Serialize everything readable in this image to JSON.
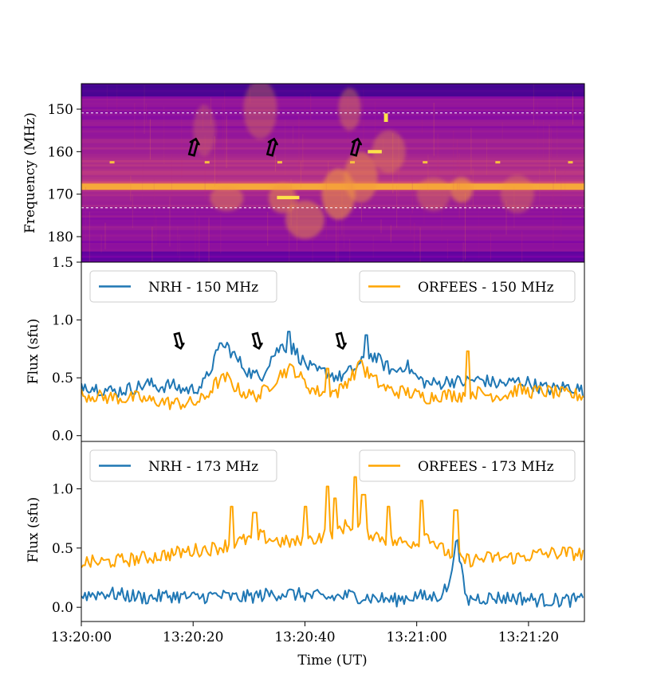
{
  "chart_data": [
    {
      "type": "heatmap",
      "title": "",
      "ylabel": "Frequency (MHz)",
      "ylim": [
        186,
        144
      ],
      "yticks": [
        150,
        160,
        170,
        180
      ],
      "ytick_labels": [
        "150",
        "160",
        "170",
        "180"
      ],
      "xlim": [
        0,
        90
      ],
      "colormap": "plasma",
      "reference_lines_mhz": [
        150.9,
        173.2
      ],
      "arrows_at_seconds": [
        19.5,
        33.5,
        48.5
      ],
      "arrow_glyph": "⇧",
      "blobs": [
        {
          "t": 22,
          "f": 155,
          "w": 2.0,
          "h": 12,
          "a": 0.25
        },
        {
          "t": 26,
          "f": 171,
          "w": 3.0,
          "h": 6,
          "a": 0.4
        },
        {
          "t": 32,
          "f": 150,
          "w": 3.0,
          "h": 14,
          "a": 0.3
        },
        {
          "t": 36,
          "f": 171,
          "w": 2.5,
          "h": 7,
          "a": 0.45
        },
        {
          "t": 40,
          "f": 176,
          "w": 3.5,
          "h": 9,
          "a": 0.45
        },
        {
          "t": 46,
          "f": 170,
          "w": 3.0,
          "h": 12,
          "a": 0.55
        },
        {
          "t": 48,
          "f": 150,
          "w": 2.0,
          "h": 10,
          "a": 0.35
        },
        {
          "t": 50,
          "f": 166,
          "w": 3.0,
          "h": 12,
          "a": 0.45
        },
        {
          "t": 55,
          "f": 160,
          "w": 3.0,
          "h": 10,
          "a": 0.35
        },
        {
          "t": 63,
          "f": 170,
          "w": 3.0,
          "h": 8,
          "a": 0.3
        },
        {
          "t": 68,
          "f": 169,
          "w": 2.0,
          "h": 6,
          "a": 0.55
        },
        {
          "t": 78,
          "f": 170,
          "w": 3.0,
          "h": 9,
          "a": 0.3
        }
      ],
      "bright_marks": [
        {
          "t": 37.0,
          "f": 170.8,
          "dt": 4.0,
          "df": 0.8
        },
        {
          "t": 52.5,
          "f": 160.0,
          "dt": 2.5,
          "df": 0.8
        },
        {
          "t": 54.5,
          "f": 152.0,
          "dt": 0.7,
          "df": 2.0
        }
      ],
      "periodic_dots_seconds": [
        5.5,
        22.5,
        35.5,
        48.5,
        61.5,
        74.5,
        87.5
      ],
      "periodic_dots_mhz": 162.5
    },
    {
      "type": "line",
      "title": "",
      "xlabel": "",
      "ylabel": "Flux (sfu)",
      "ylim": [
        -0.05,
        1.5
      ],
      "yticks": [
        0.0,
        0.5,
        1.0,
        1.5
      ],
      "ytick_labels": [
        "0.0",
        "0.5",
        "1.0",
        "1.5"
      ],
      "arrows_at_seconds": [
        19.5,
        33.5,
        48.5
      ],
      "arrow_glyph": "⇩",
      "series": [
        {
          "name": "NRH - 150 MHz",
          "color": "#1f77b4",
          "x": [
            0,
            2,
            4,
            6,
            8,
            10,
            12,
            14,
            16,
            18,
            20,
            22,
            24,
            26,
            28,
            30,
            32,
            34,
            36,
            38,
            40,
            42,
            44,
            46,
            48,
            50,
            52,
            54,
            56,
            58,
            60,
            62,
            64,
            66,
            68,
            70,
            72,
            74,
            76,
            78,
            80,
            82,
            84,
            86,
            88,
            90
          ],
          "values": [
            0.45,
            0.42,
            0.4,
            0.38,
            0.4,
            0.42,
            0.45,
            0.42,
            0.44,
            0.4,
            0.4,
            0.45,
            0.68,
            0.78,
            0.65,
            0.55,
            0.5,
            0.68,
            0.78,
            0.75,
            0.62,
            0.55,
            0.55,
            0.5,
            0.55,
            0.62,
            0.7,
            0.62,
            0.55,
            0.62,
            0.5,
            0.45,
            0.45,
            0.48,
            0.46,
            0.48,
            0.48,
            0.45,
            0.45,
            0.47,
            0.46,
            0.42,
            0.4,
            0.42,
            0.42,
            0.38
          ],
          "peaks": [
            {
              "x": 37,
              "y": 0.9
            },
            {
              "x": 51,
              "y": 0.87
            },
            {
              "x": 25,
              "y": 0.8
            }
          ]
        },
        {
          "name": "ORFEES - 150 MHz",
          "color": "#ffa500",
          "x": [
            0,
            2,
            4,
            6,
            8,
            10,
            12,
            14,
            16,
            18,
            20,
            22,
            24,
            26,
            28,
            30,
            32,
            34,
            36,
            38,
            40,
            42,
            44,
            46,
            48,
            50,
            52,
            54,
            56,
            58,
            60,
            62,
            64,
            66,
            68,
            70,
            72,
            74,
            76,
            78,
            80,
            82,
            84,
            86,
            88,
            90
          ],
          "values": [
            0.35,
            0.35,
            0.33,
            0.33,
            0.32,
            0.33,
            0.3,
            0.3,
            0.28,
            0.28,
            0.28,
            0.32,
            0.45,
            0.5,
            0.4,
            0.35,
            0.35,
            0.45,
            0.55,
            0.58,
            0.45,
            0.38,
            0.38,
            0.38,
            0.5,
            0.6,
            0.5,
            0.42,
            0.38,
            0.38,
            0.35,
            0.33,
            0.35,
            0.35,
            0.35,
            0.38,
            0.36,
            0.35,
            0.35,
            0.4,
            0.38,
            0.38,
            0.38,
            0.36,
            0.35,
            0.35
          ],
          "peaks": [
            {
              "x": 69,
              "y": 0.73
            },
            {
              "x": 44,
              "y": 0.58
            },
            {
              "x": 50,
              "y": 0.65
            }
          ]
        }
      ]
    },
    {
      "type": "line",
      "title": "",
      "xlabel": "Time (UT)",
      "ylabel": "Flux (sfu)",
      "ylim": [
        -0.12,
        1.4
      ],
      "yticks": [
        0.0,
        0.5,
        1.0
      ],
      "ytick_labels": [
        "0.0",
        "0.5",
        "1.0"
      ],
      "xticks": [
        0,
        20,
        40,
        60,
        80
      ],
      "xtick_labels": [
        "13:20:00",
        "13:20:20",
        "13:20:40",
        "13:21:00",
        "13:21:20"
      ],
      "series": [
        {
          "name": "NRH - 173 MHz",
          "color": "#1f77b4",
          "x": [
            0,
            4,
            8,
            12,
            16,
            20,
            24,
            28,
            32,
            36,
            40,
            44,
            48,
            52,
            56,
            60,
            62,
            64,
            66,
            67,
            68,
            69,
            70,
            74,
            78,
            82,
            86,
            90
          ],
          "values": [
            0.1,
            0.12,
            0.1,
            0.08,
            0.1,
            0.08,
            0.1,
            0.08,
            0.1,
            0.12,
            0.1,
            0.08,
            0.1,
            0.08,
            0.06,
            0.1,
            0.08,
            0.1,
            0.2,
            0.62,
            0.3,
            0.05,
            0.08,
            0.08,
            0.08,
            0.06,
            0.06,
            0.06
          ],
          "peaks": []
        },
        {
          "name": "ORFEES - 173 MHz",
          "color": "#ffa500",
          "x": [
            0,
            4,
            8,
            12,
            16,
            20,
            24,
            28,
            32,
            36,
            40,
            44,
            48,
            52,
            56,
            60,
            62,
            64,
            66,
            68,
            70,
            74,
            78,
            82,
            86,
            90
          ],
          "values": [
            0.38,
            0.38,
            0.4,
            0.42,
            0.45,
            0.48,
            0.5,
            0.55,
            0.6,
            0.55,
            0.55,
            0.62,
            0.7,
            0.62,
            0.55,
            0.55,
            0.62,
            0.5,
            0.45,
            0.4,
            0.4,
            0.42,
            0.42,
            0.45,
            0.46,
            0.45
          ],
          "peaks": [
            {
              "x": 27,
              "y": 0.85
            },
            {
              "x": 31,
              "y": 0.8
            },
            {
              "x": 44,
              "y": 1.02
            },
            {
              "x": 45.5,
              "y": 0.92
            },
            {
              "x": 49,
              "y": 1.1
            },
            {
              "x": 50.5,
              "y": 0.95
            },
            {
              "x": 55,
              "y": 0.85
            },
            {
              "x": 61,
              "y": 0.9
            },
            {
              "x": 67,
              "y": 0.82
            },
            {
              "x": 40,
              "y": 0.85
            }
          ]
        }
      ]
    }
  ]
}
